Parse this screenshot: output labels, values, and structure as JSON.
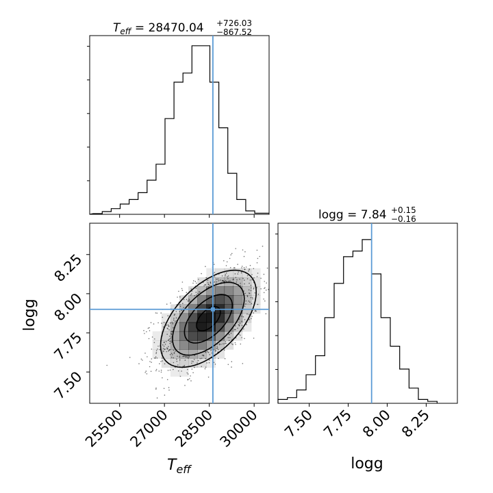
{
  "chart_data": [
    {
      "type": "histogram",
      "title": {
        "text": "T_eff = 28470.04",
        "variable_main": "T",
        "variable_sub": "eff",
        "prefix": " = ",
        "value": "28470.04",
        "upper": "+726.03",
        "lower": "−867.52"
      },
      "truth": 28620,
      "xlim": [
        24500,
        30500
      ],
      "bins": [
        24620,
        24920,
        25220,
        25520,
        25820,
        26120,
        26420,
        26720,
        27020,
        27320,
        27620,
        27920,
        28220,
        28520,
        28820,
        29120,
        29420,
        29720,
        30020,
        30320
      ],
      "counts": [
        0.3,
        1.2,
        2.5,
        4.5,
        6.5,
        9.5,
        15,
        22,
        42,
        58,
        62,
        74,
        74,
        58,
        38,
        18,
        6.5,
        1.5,
        0.5
      ]
    },
    {
      "type": "scatter_density",
      "x_variable": "T_eff",
      "y_variable": "logg",
      "xlim": [
        24500,
        30500
      ],
      "ylim": [
        7.3,
        8.45
      ],
      "truth": {
        "x": 28620,
        "y": 7.9
      },
      "contour_levels": [
        "0.5 sigma",
        "1 sigma",
        "1.5 sigma",
        "2 sigma"
      ]
    },
    {
      "type": "histogram",
      "title": {
        "prefix": "logg = ",
        "value": "7.84",
        "upper": "+0.15",
        "lower": "−0.16"
      },
      "truth": 7.9,
      "xlim": [
        7.3,
        8.45
      ],
      "bins": [
        7.3,
        7.36,
        7.42,
        7.48,
        7.54,
        7.6,
        7.66,
        7.72,
        7.78,
        7.84,
        7.9,
        7.96,
        8.02,
        8.08,
        8.14,
        8.2,
        8.26,
        8.32
      ],
      "counts": [
        2,
        3,
        7,
        15,
        25,
        45,
        63,
        77,
        80,
        86,
        68,
        45,
        30,
        18,
        8,
        2,
        1
      ]
    }
  ],
  "axes": {
    "teff_ticks": [
      "25500",
      "27000",
      "28500",
      "30000"
    ],
    "teff_tick_values": [
      25500,
      27000,
      28500,
      30000
    ],
    "logg_ticks": [
      "7.50",
      "7.75",
      "8.00",
      "8.25"
    ],
    "logg_tick_values": [
      7.5,
      7.75,
      8.0,
      8.25
    ],
    "xlabel_left": {
      "main": "T",
      "sub": "eff"
    },
    "xlabel_right": "logg",
    "ylabel": "logg"
  },
  "colors": {
    "truth": "#5b9bd5",
    "hist": "#000000",
    "density": "#000000"
  }
}
